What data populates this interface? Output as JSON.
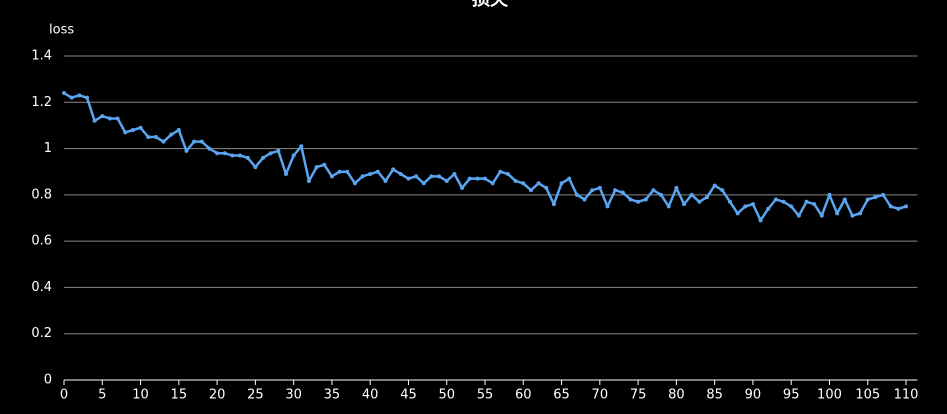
{
  "chart_data": {
    "type": "line",
    "title": "损失",
    "y_label": "loss",
    "color": "#5aa5f0",
    "grid": true,
    "x": [
      0,
      1,
      2,
      3,
      4,
      5,
      6,
      7,
      8,
      9,
      10,
      11,
      12,
      13,
      14,
      15,
      16,
      17,
      18,
      19,
      20,
      21,
      22,
      23,
      24,
      25,
      26,
      27,
      28,
      29,
      30,
      31,
      32,
      33,
      34,
      35,
      36,
      37,
      38,
      39,
      40,
      41,
      42,
      43,
      44,
      45,
      46,
      47,
      48,
      49,
      50,
      51,
      52,
      53,
      54,
      55,
      56,
      57,
      58,
      59,
      60,
      61,
      62,
      63,
      64,
      65,
      66,
      67,
      68,
      69,
      70,
      71,
      72,
      73,
      74,
      75,
      76,
      77,
      78,
      79,
      80,
      81,
      82,
      83,
      84,
      85,
      86,
      87,
      88,
      89,
      90,
      91,
      92,
      93,
      94,
      95,
      96,
      97,
      98,
      99,
      100,
      101,
      102,
      103,
      104,
      105,
      106,
      107,
      108,
      109,
      110
    ],
    "values": [
      1.24,
      1.22,
      1.23,
      1.22,
      1.12,
      1.14,
      1.13,
      1.13,
      1.07,
      1.08,
      1.09,
      1.05,
      1.05,
      1.03,
      1.06,
      1.08,
      0.99,
      1.03,
      1.03,
      1.0,
      0.98,
      0.98,
      0.97,
      0.97,
      0.96,
      0.92,
      0.96,
      0.98,
      0.99,
      0.89,
      0.97,
      1.01,
      0.86,
      0.92,
      0.93,
      0.88,
      0.9,
      0.9,
      0.85,
      0.88,
      0.89,
      0.9,
      0.86,
      0.91,
      0.89,
      0.87,
      0.88,
      0.85,
      0.88,
      0.88,
      0.86,
      0.89,
      0.83,
      0.87,
      0.87,
      0.87,
      0.85,
      0.9,
      0.89,
      0.86,
      0.85,
      0.82,
      0.85,
      0.83,
      0.76,
      0.85,
      0.87,
      0.8,
      0.78,
      0.82,
      0.83,
      0.75,
      0.82,
      0.81,
      0.78,
      0.77,
      0.78,
      0.82,
      0.8,
      0.75,
      0.83,
      0.76,
      0.8,
      0.77,
      0.79,
      0.84,
      0.82,
      0.77,
      0.72,
      0.75,
      0.76,
      0.69,
      0.74,
      0.78,
      0.77,
      0.75,
      0.71,
      0.77,
      0.76,
      0.71,
      0.8,
      0.72,
      0.78,
      0.71,
      0.72,
      0.78,
      0.79,
      0.8,
      0.75,
      0.74,
      0.75
    ],
    "xlim": [
      0,
      111.5
    ],
    "xticks": [
      0,
      5,
      10,
      15,
      20,
      25,
      30,
      35,
      40,
      45,
      50,
      55,
      60,
      65,
      70,
      75,
      80,
      85,
      90,
      95,
      100,
      105,
      110
    ],
    "ylim": [
      0,
      1.4
    ],
    "yticks": [
      0,
      0.2,
      0.4,
      0.6,
      0.8,
      1,
      1.2,
      1.4
    ]
  }
}
